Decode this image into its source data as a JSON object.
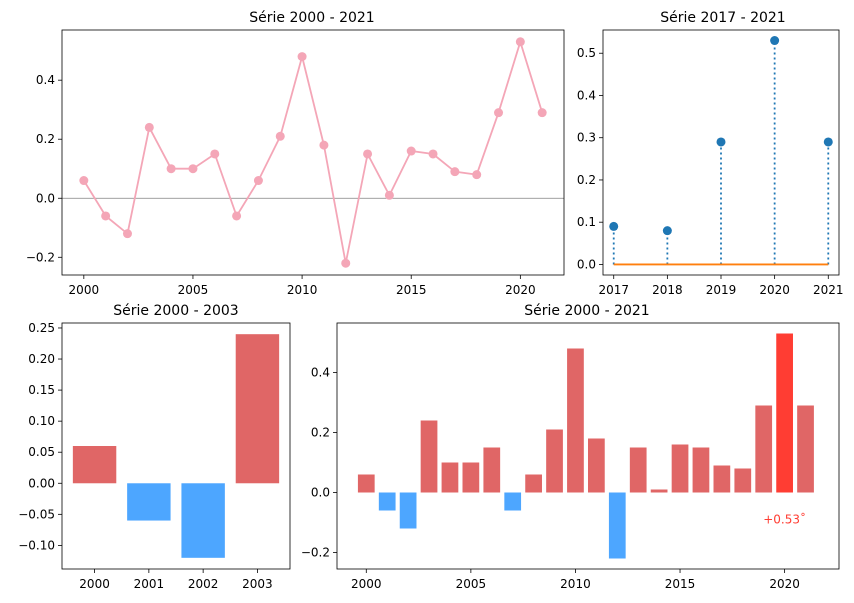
{
  "colors": {
    "line": "#f4a6b7",
    "positive_bar": "#e06666",
    "negative_bar": "#4da6ff",
    "highlight_bar": "#ff3d33",
    "stem": "#1f77b4",
    "baseline": "#ff7f0e",
    "zero_line": "#808080"
  },
  "chart_data": [
    {
      "id": "panel_tl",
      "type": "line",
      "title": "Série 2000 - 2021",
      "x": [
        2000,
        2001,
        2002,
        2003,
        2004,
        2005,
        2006,
        2007,
        2008,
        2009,
        2010,
        2011,
        2012,
        2013,
        2014,
        2015,
        2016,
        2017,
        2018,
        2019,
        2020,
        2021
      ],
      "values": [
        0.06,
        -0.06,
        -0.12,
        0.24,
        0.1,
        0.1,
        0.15,
        -0.06,
        0.06,
        0.21,
        0.48,
        0.18,
        -0.22,
        0.15,
        0.01,
        0.16,
        0.15,
        0.09,
        0.08,
        0.29,
        0.53,
        0.29
      ],
      "xlim": [
        1999,
        2022
      ],
      "ylim": [
        -0.26,
        0.57
      ],
      "xticks": [
        2000,
        2005,
        2010,
        2015,
        2020
      ],
      "xtick_labels": [
        "2000",
        "2005",
        "2010",
        "2015",
        "2020"
      ],
      "yticks": [
        -0.2,
        0.0,
        0.2,
        0.4
      ],
      "ytick_labels": [
        "−0.2",
        "0.0",
        "0.2",
        "0.4"
      ],
      "zero_line": true,
      "grid": false
    },
    {
      "id": "panel_tr",
      "type": "stem",
      "title": "Série 2017 - 2021",
      "x": [
        2017,
        2018,
        2019,
        2020,
        2021
      ],
      "values": [
        0.09,
        0.08,
        0.29,
        0.53,
        0.29
      ],
      "xlim": [
        2016.8,
        2021.2
      ],
      "ylim": [
        -0.025,
        0.555
      ],
      "xticks": [
        2017,
        2018,
        2019,
        2020,
        2021
      ],
      "xtick_labels": [
        "2017",
        "2018",
        "2019",
        "2020",
        "2021"
      ],
      "yticks": [
        0.0,
        0.1,
        0.2,
        0.3,
        0.4,
        0.5
      ],
      "ytick_labels": [
        "0.0",
        "0.1",
        "0.2",
        "0.3",
        "0.4",
        "0.5"
      ],
      "grid": false
    },
    {
      "id": "panel_bl",
      "type": "bar",
      "title": "Série 2000 - 2003",
      "categories": [
        "2000",
        "2001",
        "2002",
        "2003"
      ],
      "values": [
        0.06,
        -0.06,
        -0.12,
        0.24
      ],
      "xlim": [
        -0.6,
        3.6
      ],
      "ylim": [
        -0.138,
        0.258
      ],
      "bar_width": 0.8,
      "yticks": [
        -0.1,
        -0.05,
        0.0,
        0.05,
        0.1,
        0.15,
        0.2,
        0.25
      ],
      "ytick_labels": [
        "−0.10",
        "−0.05",
        "0.00",
        "0.05",
        "0.10",
        "0.15",
        "0.20",
        "0.25"
      ],
      "grid": false
    },
    {
      "id": "panel_br",
      "type": "bar",
      "title": "Série 2000 - 2021",
      "x": [
        2000,
        2001,
        2002,
        2003,
        2004,
        2005,
        2006,
        2007,
        2008,
        2009,
        2010,
        2011,
        2012,
        2013,
        2014,
        2015,
        2016,
        2017,
        2018,
        2019,
        2020,
        2021
      ],
      "values": [
        0.06,
        -0.06,
        -0.12,
        0.24,
        0.1,
        0.1,
        0.15,
        -0.06,
        0.06,
        0.21,
        0.48,
        0.18,
        -0.22,
        0.15,
        0.01,
        0.16,
        0.15,
        0.09,
        0.08,
        0.29,
        0.53,
        0.29
      ],
      "highlight_index": 20,
      "xlim": [
        1998.6,
        2022.6
      ],
      "ylim": [
        -0.255,
        0.565
      ],
      "bar_width": 0.8,
      "xticks": [
        2000,
        2005,
        2010,
        2015,
        2020
      ],
      "xtick_labels": [
        "2000",
        "2005",
        "2010",
        "2015",
        "2020"
      ],
      "yticks": [
        -0.2,
        0.0,
        0.2,
        0.4
      ],
      "ytick_labels": [
        "−0.2",
        "0.0",
        "0.2",
        "0.4"
      ],
      "annotation": {
        "text": "+0.53˚",
        "x": 2020,
        "y": -0.09
      },
      "grid": false
    }
  ]
}
